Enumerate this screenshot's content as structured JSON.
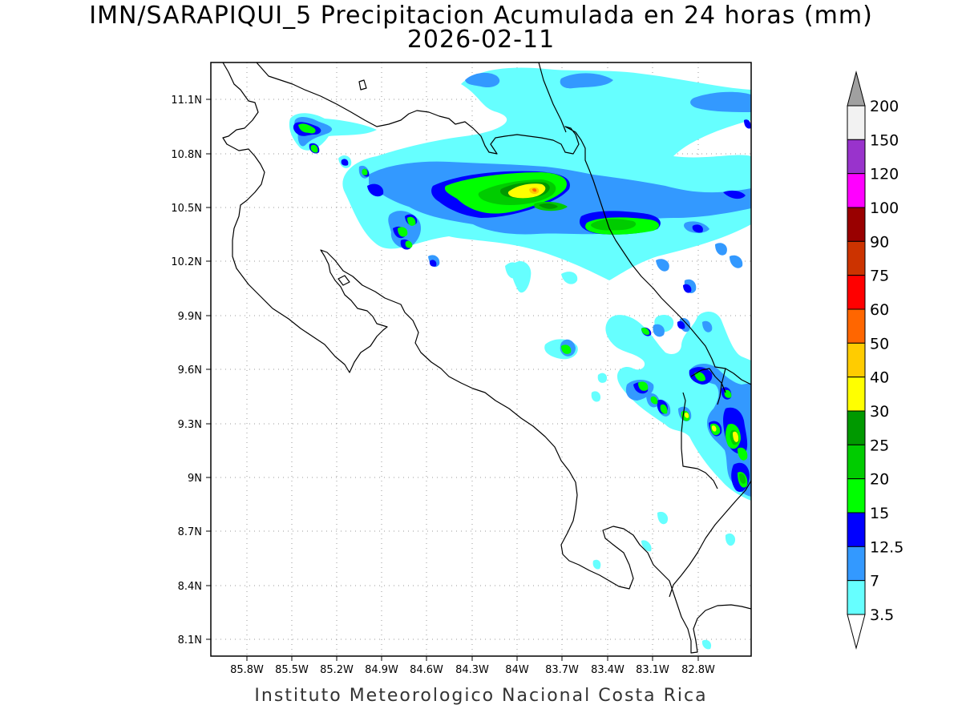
{
  "title_line1": "IMN/SARAPIQUI_5 Precipitacion Acumulada en 24 horas (mm)",
  "title_line2": "2026-02-11",
  "footer": "Instituto Meteorologico Nacional Costa Rica",
  "x_ticks": [
    "85.8W",
    "85.5W",
    "85.2W",
    "84.9W",
    "84.6W",
    "84.3W",
    "84W",
    "83.7W",
    "83.4W",
    "83.1W",
    "82.8W"
  ],
  "y_ticks": [
    "11.1N",
    "10.8N",
    "10.5N",
    "10.2N",
    "9.9N",
    "9.6N",
    "9.3N",
    "9N",
    "8.7N",
    "8.4N",
    "8.1N"
  ],
  "legend": {
    "top_label": "200",
    "levels": [
      {
        "label": "150",
        "color": "#f2f2f2"
      },
      {
        "label": "120",
        "color": "#9933cc"
      },
      {
        "label": "100",
        "color": "#ff00ff"
      },
      {
        "label": "90",
        "color": "#990000"
      },
      {
        "label": "75",
        "color": "#cc3300"
      },
      {
        "label": "60",
        "color": "#ff0000"
      },
      {
        "label": "50",
        "color": "#ff6600"
      },
      {
        "label": "40",
        "color": "#ffcc00"
      },
      {
        "label": "30",
        "color": "#ffff00"
      },
      {
        "label": "25",
        "color": "#009900"
      },
      {
        "label": "20",
        "color": "#00cc00"
      },
      {
        "label": "15",
        "color": "#00ff00"
      },
      {
        "label": "12.5",
        "color": "#0000ff"
      },
      {
        "label": "7",
        "color": "#3399ff"
      },
      {
        "label": "3.5",
        "color": "#66ffff"
      }
    ],
    "top_arrow_color": "#a0a0a0",
    "bottom_arrow_color": "#ffffff"
  }
}
